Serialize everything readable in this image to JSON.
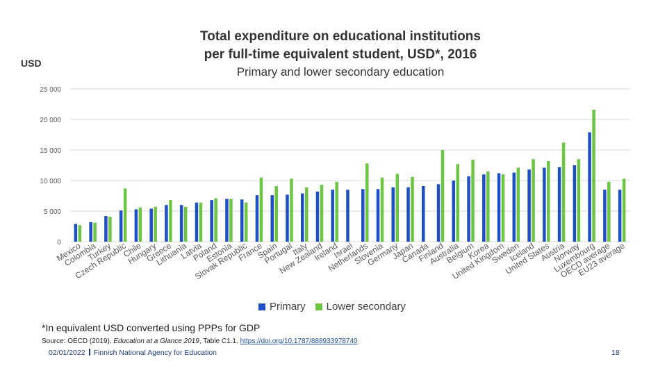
{
  "title_line1": "Total expenditure on educational institutions",
  "title_line2": "per full-time equivalent student, USD*, 2016",
  "subtitle": "Primary and lower secondary education",
  "unit_label": "USD",
  "footnote": "*In equivalent USD converted using PPPs for GDP",
  "source_prefix": "Source: OECD (2019), ",
  "source_italic": "Education at a Glance 2019",
  "source_mid": ", Table C1.1. ",
  "source_link": "https://doi.org/10.1787/888933978740",
  "footer_date": "02/01/2022",
  "footer_org": "Finnish National Agency for Education",
  "page_number": "18",
  "colors": {
    "primary": "#1f4fc4",
    "lower_secondary": "#6cc644",
    "grid": "#d9d9d9",
    "axis_text": "#595959"
  },
  "chart_data": {
    "type": "bar",
    "ylim": [
      0,
      25000
    ],
    "yticks": [
      0,
      5000,
      10000,
      15000,
      20000,
      25000
    ],
    "ytick_labels": [
      "0",
      "5 000",
      "10 000",
      "15 000",
      "20 000",
      "25 000"
    ],
    "grid": true,
    "legend_position": "bottom",
    "categories": [
      "Mexico",
      "Colombia",
      "Turkey",
      "Czech Republic",
      "Chile",
      "Hungary",
      "Greece",
      "Lithuania",
      "Latvia",
      "Poland",
      "Estonia",
      "Slovak Republic",
      "France",
      "Spain",
      "Portugal",
      "Italy",
      "New Zealand",
      "Ireland",
      "Israel",
      "Netherlands",
      "Slovenia",
      "Germany",
      "Japan",
      "Canada",
      "Finland",
      "Australia",
      "Belgium",
      "Korea",
      "United Kingdom",
      "Sweden",
      "Iceland",
      "United States",
      "Austria",
      "Norway",
      "Luxembourg",
      "OECD average",
      "EU23 average"
    ],
    "series": [
      {
        "name": "Primary",
        "values": [
          2900,
          3200,
          4200,
          5100,
          5300,
          5400,
          6000,
          6000,
          6400,
          6800,
          7000,
          6900,
          7600,
          7600,
          7700,
          7900,
          8200,
          8500,
          8500,
          8600,
          8600,
          8900,
          8900,
          9100,
          9400,
          10000,
          10700,
          11000,
          11200,
          11300,
          11800,
          12100,
          12200,
          12500,
          17900,
          8500,
          8500
        ]
      },
      {
        "name": "Lower secondary",
        "values": [
          2700,
          3100,
          4100,
          8700,
          5600,
          5700,
          6800,
          5700,
          6400,
          7100,
          7000,
          6400,
          10500,
          9100,
          10300,
          8900,
          9300,
          9800,
          0,
          12800,
          10500,
          11100,
          10600,
          0,
          15000,
          12700,
          13400,
          11500,
          11000,
          12100,
          13500,
          13200,
          16200,
          13500,
          21600,
          9800,
          10300
        ]
      }
    ]
  }
}
